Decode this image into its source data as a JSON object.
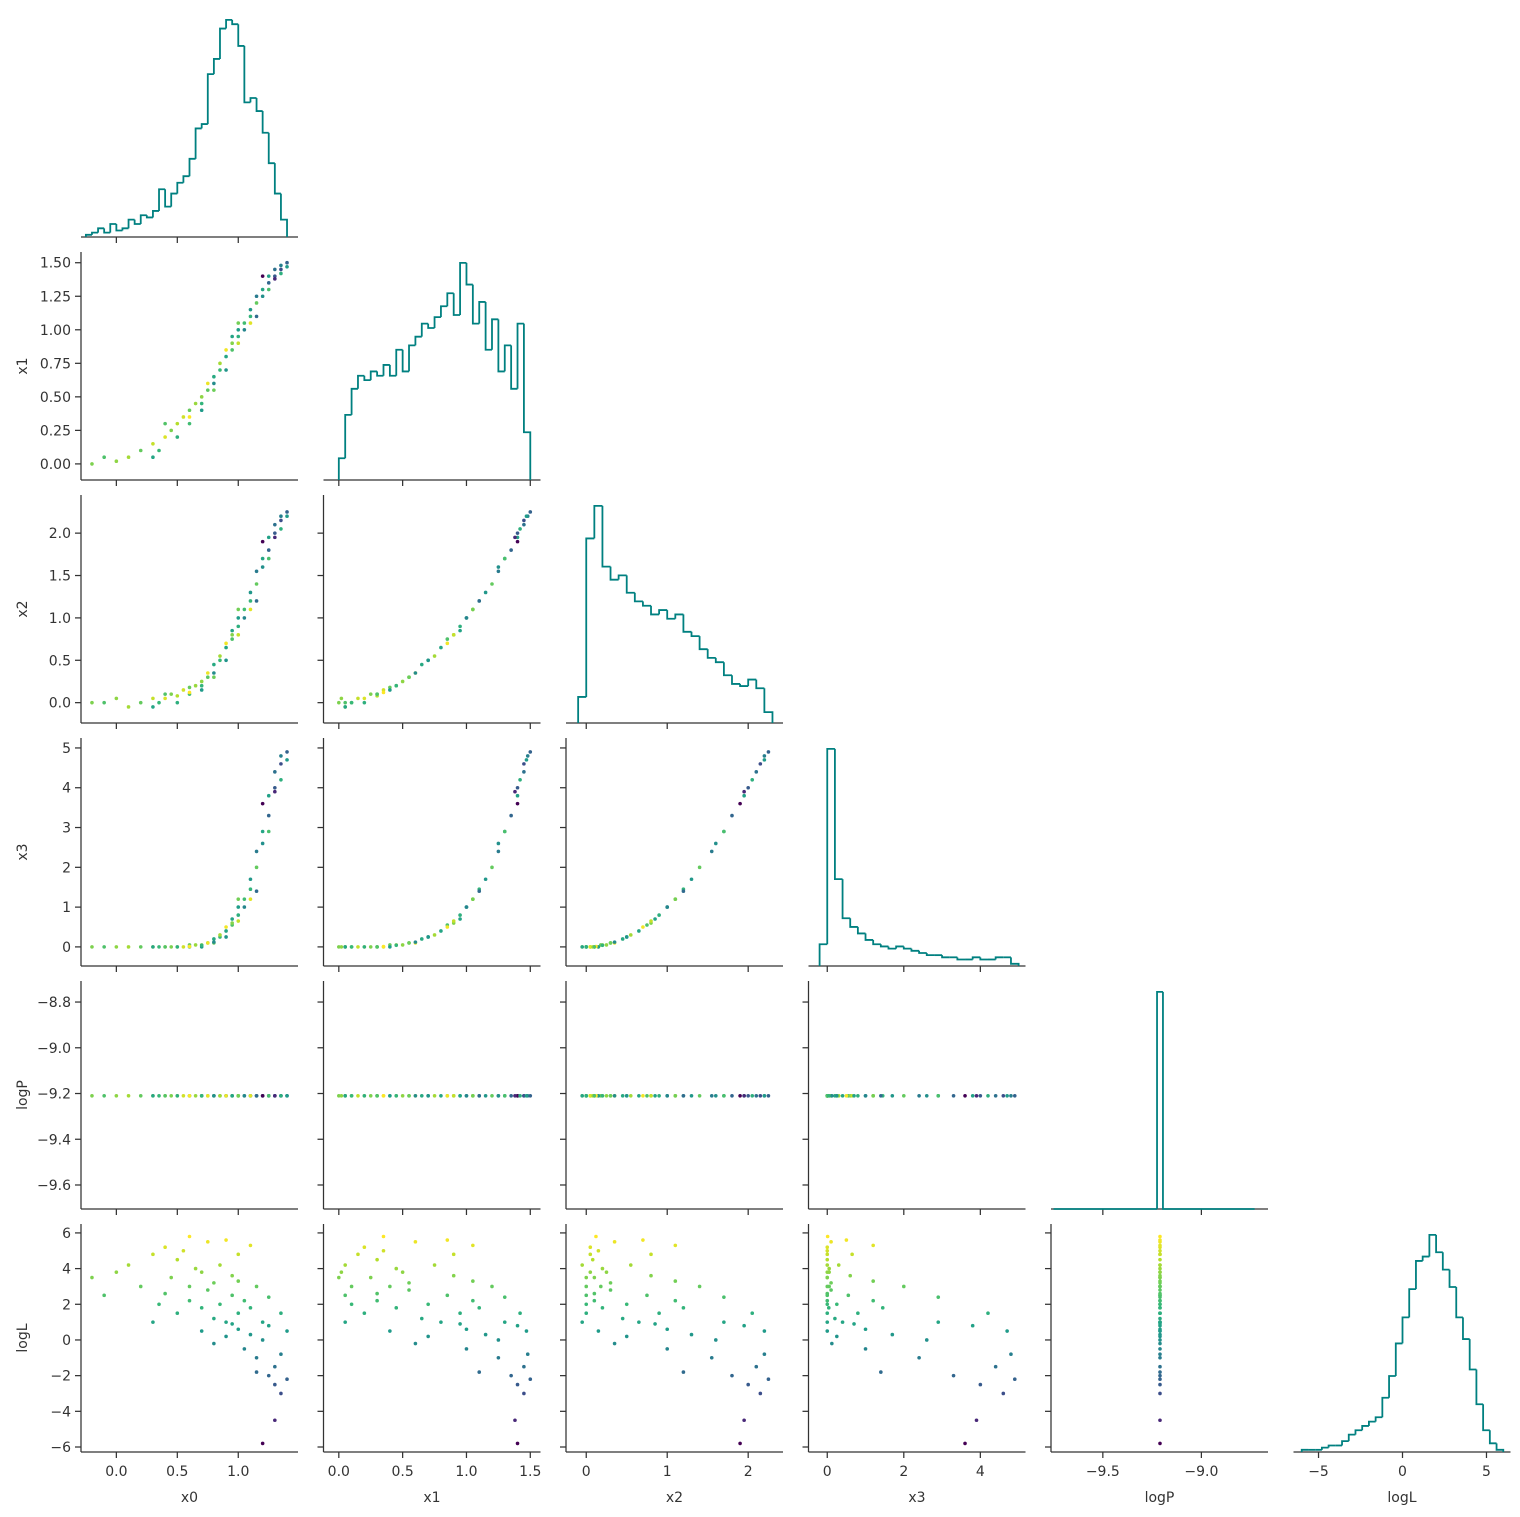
{
  "chart_data": {
    "type": "corner",
    "color": "#008080",
    "color_by": "logL",
    "colormap": [
      "#440154",
      "#482878",
      "#3e4989",
      "#31688e",
      "#26828e",
      "#1f9e89",
      "#35b779",
      "#6ece58",
      "#b5de2b",
      "#fde725"
    ],
    "variables": [
      {
        "name": "x0",
        "xlim": [
          -0.29,
          1.49
        ],
        "xticks": [
          {
            "value": 0,
            "label": "0.0"
          },
          0.5,
          {
            "value": 1,
            "label": "1.0"
          }
        ],
        "samples": [
          -0.2,
          -0.1,
          0.0,
          0.1,
          0.2,
          0.3,
          0.35,
          0.4,
          0.45,
          0.5,
          0.5,
          0.55,
          0.6,
          0.6,
          0.65,
          0.7,
          0.7,
          0.75,
          0.75,
          0.8,
          0.8,
          0.85,
          0.85,
          0.9,
          0.9,
          0.95,
          0.95,
          1.0,
          1.0,
          1.0,
          1.05,
          1.05,
          1.1,
          1.1,
          1.15,
          1.15,
          1.2,
          1.2,
          1.25,
          1.25,
          1.3,
          1.3,
          1.35,
          1.35,
          1.4,
          1.4,
          1.2,
          1.3,
          0.9,
          0.6,
          1.1,
          0.3,
          0.8,
          1.0,
          0.4,
          1.25,
          0.7,
          1.15,
          0.95,
          1.35
        ],
        "hist": {
          "ylim": [
            0,
            105
          ],
          "bins": [
            -0.25,
            -0.2,
            -0.15,
            -0.1,
            -0.05,
            0.0,
            0.05,
            0.1,
            0.15,
            0.2,
            0.25,
            0.3,
            0.35,
            0.4,
            0.45,
            0.5,
            0.55,
            0.6,
            0.65,
            0.7,
            0.75,
            0.8,
            0.85,
            0.9,
            0.95,
            1.0,
            1.05,
            1.1,
            1.15,
            1.2,
            1.25,
            1.3,
            1.35,
            1.4
          ],
          "counts": [
            1,
            2,
            4,
            2,
            6,
            3,
            4,
            8,
            6,
            10,
            9,
            12,
            22,
            14,
            20,
            25,
            28,
            36,
            50,
            52,
            75,
            82,
            96,
            100,
            98,
            88,
            62,
            64,
            58,
            48,
            34,
            20,
            8
          ]
        }
      },
      {
        "name": "x1",
        "xlim": [
          -0.12,
          1.58
        ],
        "xticks": [
          {
            "value": 0,
            "label": "0.0"
          },
          0.5,
          {
            "value": 1,
            "label": "1.0"
          },
          1.5
        ],
        "ylim": [
          -0.12,
          1.58
        ],
        "yticks": [
          {
            "value": 0,
            "label": "0.00"
          },
          0.25,
          {
            "value": 0.5,
            "label": "0.50"
          },
          0.75,
          {
            "value": 1,
            "label": "1.00"
          },
          1.25,
          {
            "value": 1.5,
            "label": "1.50"
          }
        ],
        "samples": [
          0.0,
          0.05,
          0.02,
          0.05,
          0.1,
          0.15,
          0.1,
          0.2,
          0.25,
          0.3,
          0.2,
          0.35,
          0.4,
          0.3,
          0.45,
          0.5,
          0.4,
          0.55,
          0.6,
          0.65,
          0.55,
          0.7,
          0.75,
          0.8,
          0.7,
          0.85,
          0.9,
          0.95,
          1.0,
          0.9,
          1.05,
          1.0,
          1.1,
          1.15,
          1.2,
          1.25,
          1.3,
          1.25,
          1.35,
          1.4,
          1.4,
          1.45,
          1.45,
          1.48,
          1.5,
          1.47,
          1.4,
          1.38,
          0.85,
          0.35,
          1.05,
          0.05,
          0.6,
          1.05,
          0.3,
          1.3,
          0.45,
          1.1,
          0.95,
          1.42
        ],
        "hist": {
          "ylim": [
            0,
            105
          ],
          "bins": [
            0.0,
            0.05,
            0.1,
            0.15,
            0.2,
            0.25,
            0.3,
            0.35,
            0.4,
            0.45,
            0.5,
            0.55,
            0.6,
            0.65,
            0.7,
            0.75,
            0.8,
            0.85,
            0.9,
            0.95,
            1.0,
            1.05,
            1.1,
            1.15,
            1.2,
            1.25,
            1.3,
            1.35,
            1.4,
            1.45,
            1.5
          ],
          "counts": [
            10,
            30,
            42,
            48,
            46,
            50,
            48,
            53,
            48,
            60,
            50,
            62,
            66,
            72,
            70,
            75,
            80,
            86,
            76,
            100,
            90,
            72,
            82,
            60,
            74,
            50,
            62,
            42,
            72,
            22
          ]
        }
      },
      {
        "name": "x2",
        "xlim": [
          -0.25,
          2.43
        ],
        "xticks": [
          0,
          1,
          2
        ],
        "ylim": [
          -0.24,
          2.45
        ],
        "yticks": [
          {
            "value": 0,
            "label": "0.0"
          },
          0.5,
          {
            "value": 1,
            "label": "1.0"
          },
          1.5,
          {
            "value": 2,
            "label": "2.0"
          }
        ],
        "samples": [
          0.0,
          0.0,
          0.05,
          -0.05,
          0.0,
          0.05,
          0.0,
          0.05,
          0.1,
          0.08,
          0.0,
          0.15,
          0.18,
          0.1,
          0.2,
          0.25,
          0.15,
          0.3,
          0.35,
          0.45,
          0.3,
          0.5,
          0.55,
          0.65,
          0.5,
          0.75,
          0.8,
          0.9,
          1.0,
          0.8,
          1.1,
          1.0,
          1.2,
          1.3,
          1.4,
          1.55,
          1.7,
          1.6,
          1.8,
          1.95,
          2.0,
          2.1,
          2.15,
          2.2,
          2.25,
          2.2,
          1.9,
          1.95,
          0.7,
          0.12,
          1.1,
          -0.05,
          0.35,
          1.1,
          0.1,
          1.7,
          0.2,
          1.2,
          0.85,
          2.05
        ],
        "hist": {
          "ylim": [
            0,
            105
          ],
          "bins": [
            -0.1,
            0.0,
            0.1,
            0.2,
            0.3,
            0.4,
            0.5,
            0.6,
            0.7,
            0.8,
            0.9,
            1.0,
            1.1,
            1.2,
            1.3,
            1.4,
            1.5,
            1.6,
            1.7,
            1.8,
            1.9,
            2.0,
            2.1,
            2.2,
            2.3
          ],
          "counts": [
            12,
            85,
            100,
            72,
            66,
            68,
            60,
            56,
            54,
            50,
            52,
            48,
            50,
            42,
            40,
            34,
            30,
            28,
            22,
            18,
            17,
            20,
            16,
            5
          ]
        }
      },
      {
        "name": "x3",
        "xlim": [
          -0.49,
          5.18
        ],
        "xticks": [
          0,
          2,
          4
        ],
        "ylim": [
          -0.48,
          5.25
        ],
        "yticks": [
          0,
          1,
          2,
          3,
          4,
          5
        ],
        "samples": [
          0.0,
          0.0,
          0.0,
          0.0,
          0.0,
          0.0,
          0.0,
          0.0,
          0.0,
          0.0,
          0.0,
          0.0,
          0.05,
          0.0,
          0.05,
          0.05,
          0.0,
          0.1,
          0.1,
          0.2,
          0.1,
          0.25,
          0.3,
          0.4,
          0.25,
          0.55,
          0.6,
          0.8,
          1.0,
          0.65,
          1.2,
          1.0,
          1.45,
          1.7,
          2.0,
          2.4,
          2.9,
          2.6,
          3.3,
          3.8,
          4.0,
          4.4,
          4.6,
          4.8,
          4.9,
          4.7,
          3.6,
          3.9,
          0.5,
          0.01,
          1.2,
          0.0,
          0.12,
          1.2,
          0.0,
          2.9,
          0.04,
          1.4,
          0.7,
          4.2
        ],
        "hist": {
          "ylim": [
            0,
            105
          ],
          "bins": [
            -0.2,
            0.0,
            0.2,
            0.4,
            0.6,
            0.8,
            1.0,
            1.2,
            1.4,
            1.6,
            1.8,
            2.0,
            2.2,
            2.4,
            2.6,
            2.8,
            3.0,
            3.2,
            3.4,
            3.6,
            3.8,
            4.0,
            4.2,
            4.4,
            4.6,
            4.8,
            5.0
          ],
          "counts": [
            10,
            100,
            40,
            22,
            18,
            15,
            12,
            10,
            9,
            8,
            9,
            8,
            7,
            6,
            5,
            5,
            4,
            4,
            3,
            3,
            4,
            3,
            3,
            4,
            4,
            1
          ]
        }
      },
      {
        "name": "logP",
        "xlim": [
          -9.763,
          -8.662
        ],
        "xticks": [
          {
            "value": -9.5,
            "label": "−9.5"
          },
          {
            "value": -9,
            "label": "−9.0"
          }
        ],
        "ylim": [
          -9.705,
          -8.708
        ],
        "yticks": [
          {
            "value": -9.6,
            "label": "−9.6"
          },
          {
            "value": -9.4,
            "label": "−9.4"
          },
          {
            "value": -9.2,
            "label": "−9.2"
          },
          {
            "value": -9,
            "label": "−9.0"
          },
          {
            "value": -8.8,
            "label": "−8.8"
          }
        ],
        "samples": [
          -9.21,
          -9.21,
          -9.21,
          -9.21,
          -9.21,
          -9.21,
          -9.21,
          -9.21,
          -9.21,
          -9.21,
          -9.21,
          -9.21,
          -9.21,
          -9.21,
          -9.21,
          -9.21,
          -9.21,
          -9.21,
          -9.21,
          -9.21,
          -9.21,
          -9.21,
          -9.21,
          -9.21,
          -9.21,
          -9.21,
          -9.21,
          -9.21,
          -9.21,
          -9.21,
          -9.21,
          -9.21,
          -9.21,
          -9.21,
          -9.21,
          -9.21,
          -9.21,
          -9.21,
          -9.21,
          -9.21,
          -9.21,
          -9.21,
          -9.21,
          -9.21,
          -9.21,
          -9.21,
          -9.21,
          -9.21,
          -9.21,
          -9.21,
          -9.21,
          -9.21,
          -9.21,
          -9.21,
          -9.21,
          -9.21,
          -9.21,
          -9.21,
          -9.21,
          -9.21
        ],
        "hist": {
          "ylim": [
            0,
            105
          ],
          "bins": [
            -9.75,
            -9.225,
            -9.195,
            -8.73
          ],
          "counts": [
            0,
            100,
            0
          ]
        }
      },
      {
        "name": "logL",
        "xlim": [
          -6.49,
          6.43
        ],
        "xticks": [
          {
            "value": -5,
            "label": "−5"
          },
          0,
          5
        ],
        "ylim": [
          -6.28,
          6.5
        ],
        "yticks": [
          {
            "value": -6,
            "label": "−6"
          },
          {
            "value": -4,
            "label": "−4"
          },
          {
            "value": -2,
            "label": "−2"
          },
          0,
          2,
          4,
          6
        ],
        "samples": [
          3.5,
          2.5,
          3.8,
          4.2,
          3.0,
          4.8,
          2.0,
          5.2,
          3.5,
          4.5,
          1.5,
          5.0,
          3.0,
          2.2,
          4.0,
          3.8,
          0.5,
          2.8,
          5.5,
          1.2,
          3.2,
          2.0,
          4.2,
          1.0,
          0.2,
          2.5,
          3.6,
          1.5,
          0.6,
          4.8,
          2.2,
          -0.5,
          1.8,
          0.3,
          3.0,
          -1.0,
          1.0,
          0.0,
          -2.0,
          0.8,
          -2.5,
          -1.5,
          -3.0,
          -0.8,
          -2.2,
          0.5,
          -5.8,
          -4.5,
          5.6,
          5.8,
          5.3,
          1.0,
          -0.2,
          3.3,
          2.6,
          2.4,
          1.8,
          -1.8,
          0.9,
          1.5
        ],
        "hist": {
          "ylim": [
            0,
            105
          ],
          "bins": [
            -6.0,
            -5.6,
            -5.2,
            -4.8,
            -4.4,
            -4.0,
            -3.6,
            -3.2,
            -2.8,
            -2.4,
            -2.0,
            -1.6,
            -1.2,
            -0.8,
            -0.4,
            0.0,
            0.4,
            0.8,
            1.2,
            1.6,
            2.0,
            2.4,
            2.8,
            3.2,
            3.6,
            4.0,
            4.4,
            4.8,
            5.2,
            5.6,
            6.0
          ],
          "counts": [
            1,
            1,
            1,
            2,
            3,
            3,
            5,
            8,
            10,
            12,
            14,
            16,
            25,
            35,
            50,
            62,
            75,
            88,
            90,
            100,
            92,
            84,
            76,
            62,
            52,
            38,
            22,
            10,
            4,
            1
          ]
        }
      }
    ]
  }
}
